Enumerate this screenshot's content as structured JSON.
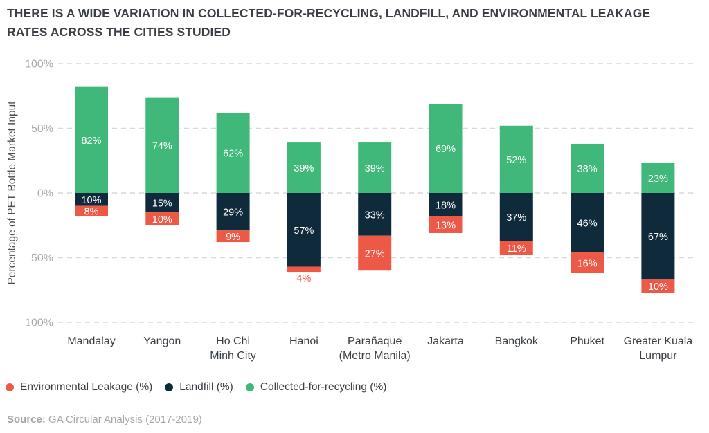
{
  "title_lines": [
    "THERE IS A WIDE VARIATION IN COLLECTED-FOR-RECYCLING, LANDFILL, AND ENVIRONMENTAL LEAKAGE",
    "RATES ACROSS THE CITIES STUDIED"
  ],
  "legend": {
    "leakage": "Environmental Leakage (%)",
    "landfill": "Landfill (%)",
    "recycling": "Collected-for-recycling (%)"
  },
  "source": {
    "label": "Source:",
    "text": "GA Circular Analysis (2017-2019)"
  },
  "colors": {
    "recycling": "#3fb87a",
    "landfill": "#0f2a3a",
    "leakage": "#ec5a47",
    "grid": "#d9d9d9",
    "tick_text": "#a7abae"
  },
  "chart_data": {
    "type": "bar",
    "stacked": "diverging",
    "ylabel": "Percentage of PET Bottle Market Input",
    "ylim": [
      -100,
      100
    ],
    "yticks": [
      {
        "value": 100,
        "label": "100%"
      },
      {
        "value": 50,
        "label": "50%"
      },
      {
        "value": 0,
        "label": "0%"
      },
      {
        "value": -50,
        "label": "50%"
      },
      {
        "value": -100,
        "label": "100%"
      }
    ],
    "categories": [
      [
        "Mandalay"
      ],
      [
        "Yangon"
      ],
      [
        "Ho Chi",
        "Minh City"
      ],
      [
        "Hanoi"
      ],
      [
        "Parañaque",
        "(Metro Manila)"
      ],
      [
        "Jakarta"
      ],
      [
        "Bangkok"
      ],
      [
        "Phuket"
      ],
      [
        "Greater Kuala",
        "Lumpur"
      ]
    ],
    "series": [
      {
        "name": "Collected-for-recycling (%)",
        "key": "recycling",
        "direction": "up",
        "values": [
          82,
          74,
          62,
          39,
          39,
          69,
          52,
          38,
          23
        ],
        "labels": [
          "82%",
          "74%",
          "62%",
          "39%",
          "39%",
          "69%",
          "52%",
          "38%",
          "23%"
        ]
      },
      {
        "name": "Landfill (%)",
        "key": "landfill",
        "direction": "down",
        "values": [
          10,
          15,
          29,
          57,
          33,
          18,
          37,
          46,
          67
        ],
        "labels": [
          "10%",
          "15%",
          "29%",
          "57%",
          "33%",
          "18%",
          "37%",
          "46%",
          "67%"
        ]
      },
      {
        "name": "Environmental Leakage (%)",
        "key": "leakage",
        "direction": "down",
        "values": [
          8,
          10,
          9,
          4,
          27,
          13,
          11,
          16,
          10
        ],
        "labels": [
          "8%",
          "10%",
          "9%",
          "4%",
          "27%",
          "13%",
          "11%",
          "16%",
          "10%"
        ]
      }
    ],
    "grid": true,
    "legend_position": "bottom-left"
  }
}
